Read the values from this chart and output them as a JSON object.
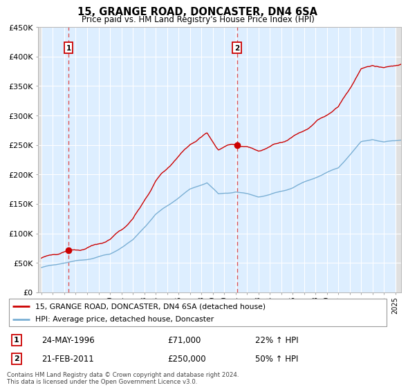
{
  "title": "15, GRANGE ROAD, DONCASTER, DN4 6SA",
  "subtitle": "Price paid vs. HM Land Registry's House Price Index (HPI)",
  "legend_line1": "15, GRANGE ROAD, DONCASTER, DN4 6SA (detached house)",
  "legend_line2": "HPI: Average price, detached house, Doncaster",
  "footnote": "Contains HM Land Registry data © Crown copyright and database right 2024.\nThis data is licensed under the Open Government Licence v3.0.",
  "table_row1": [
    "1",
    "24-MAY-1996",
    "£71,000",
    "22% ↑ HPI"
  ],
  "table_row2": [
    "2",
    "21-FEB-2011",
    "£250,000",
    "50% ↑ HPI"
  ],
  "sale1_year": 1996.38,
  "sale1_price": 71000,
  "sale2_year": 2011.12,
  "sale2_price": 250000,
  "red_color": "#cc0000",
  "blue_color": "#7aafd4",
  "dashed_color": "#dd4444",
  "chart_bg": "#ddeeff",
  "hatch_bg": "#e8e8e8",
  "grid_color": "#ffffff",
  "ylim_min": 0,
  "ylim_max": 450000,
  "xlim_min": 1993.7,
  "xlim_max": 2025.5
}
